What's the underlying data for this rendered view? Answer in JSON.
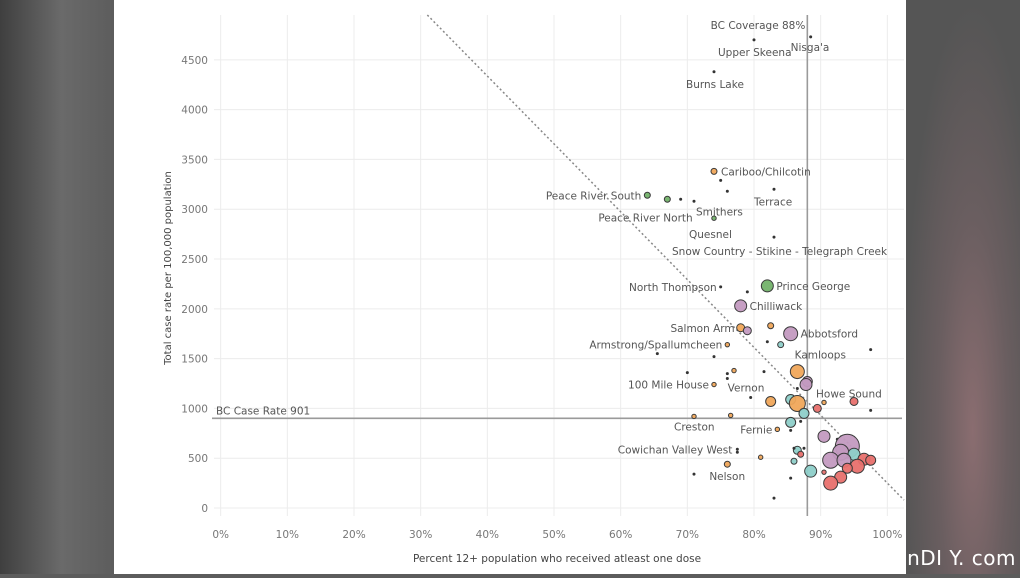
{
  "chart_data": {
    "type": "scatter",
    "xlabel": "Percent 12+ population who received atleast one dose",
    "ylabel": "Total case rate per 100,000 population",
    "xlim": [
      -0.01,
      1.025
    ],
    "ylim": [
      -80,
      4950
    ],
    "x_ticks": [
      0,
      0.1,
      0.2,
      0.3,
      0.4,
      0.5,
      0.6,
      0.7,
      0.8,
      0.9,
      1.0
    ],
    "x_tick_labels": [
      "0%",
      "10%",
      "20%",
      "30%",
      "40%",
      "50%",
      "60%",
      "70%",
      "80%",
      "90%",
      "100%"
    ],
    "y_ticks": [
      0,
      500,
      1000,
      1500,
      2000,
      2500,
      3000,
      3500,
      4000,
      4500
    ],
    "y_tick_labels": [
      "0",
      "500",
      "1000",
      "1500",
      "2000",
      "2500",
      "3000",
      "3500",
      "4000",
      "4500"
    ],
    "grid": true,
    "reference_lines": {
      "coverage": {
        "label": "BC Coverage 88%",
        "x": 0.88
      },
      "case_rate": {
        "label": "BC Case Rate 901",
        "y": 901
      }
    },
    "trend_line": {
      "from": [
        0.31,
        4950
      ],
      "to": [
        1.025,
        80
      ]
    },
    "colors": {
      "green": "#73b26a",
      "orange": "#f0a65a",
      "purple": "#c39ac0",
      "teal": "#8ecfc9",
      "red": "#e8706d",
      "dark": "#333333"
    },
    "points": [
      {
        "x": 0.8,
        "y": 4700,
        "size": 1,
        "color": "dark",
        "label": "Upper Skeena"
      },
      {
        "x": 0.885,
        "y": 4730,
        "size": 1,
        "color": "dark",
        "label": "Nisga'a"
      },
      {
        "x": 0.74,
        "y": 4380,
        "size": 1,
        "color": "dark",
        "label": "Burns Lake"
      },
      {
        "x": 0.74,
        "y": 3380,
        "size": 3,
        "color": "orange",
        "label": "Cariboo/Chilcotin"
      },
      {
        "x": 0.75,
        "y": 3290,
        "size": 1,
        "color": "dark"
      },
      {
        "x": 0.64,
        "y": 3140,
        "size": 3,
        "color": "green",
        "label": "Peace River South"
      },
      {
        "x": 0.67,
        "y": 3100,
        "size": 3,
        "color": "green",
        "label": "Peace River North"
      },
      {
        "x": 0.69,
        "y": 3100,
        "size": 1,
        "color": "dark"
      },
      {
        "x": 0.71,
        "y": 3080,
        "size": 2,
        "color": "dark",
        "label": "Smithers"
      },
      {
        "x": 0.76,
        "y": 3180,
        "size": 2,
        "color": "dark"
      },
      {
        "x": 0.83,
        "y": 3200,
        "size": 2,
        "color": "dark",
        "label": "Terrace"
      },
      {
        "x": 0.74,
        "y": 2910,
        "size": 2,
        "color": "green",
        "label": "Quesnel"
      },
      {
        "x": 0.83,
        "y": 2720,
        "size": 1,
        "color": "dark",
        "label": "Snow Country - Stikine - Telegraph Creek"
      },
      {
        "x": 0.82,
        "y": 2230,
        "size": 6,
        "color": "green",
        "label": "Prince George"
      },
      {
        "x": 0.75,
        "y": 2220,
        "size": 1,
        "color": "dark",
        "label": "North Thompson"
      },
      {
        "x": 0.79,
        "y": 2170,
        "size": 1,
        "color": "dark"
      },
      {
        "x": 0.78,
        "y": 2030,
        "size": 6,
        "color": "purple",
        "label": "Chilliwack"
      },
      {
        "x": 0.78,
        "y": 1810,
        "size": 4,
        "color": "orange",
        "label": "Salmon Arm"
      },
      {
        "x": 0.79,
        "y": 1780,
        "size": 4,
        "color": "purple"
      },
      {
        "x": 0.825,
        "y": 1830,
        "size": 3,
        "color": "orange"
      },
      {
        "x": 0.855,
        "y": 1750,
        "size": 7,
        "color": "purple",
        "label": "Abbotsford"
      },
      {
        "x": 0.82,
        "y": 1670,
        "size": 1,
        "color": "dark"
      },
      {
        "x": 0.84,
        "y": 1640,
        "size": 3,
        "color": "teal",
        "label": "Kamloops"
      },
      {
        "x": 0.76,
        "y": 1640,
        "size": 2,
        "color": "orange",
        "label": "Armstrong/Spallumcheen"
      },
      {
        "x": 0.655,
        "y": 1550,
        "size": 1,
        "color": "dark"
      },
      {
        "x": 0.74,
        "y": 1520,
        "size": 1,
        "color": "dark"
      },
      {
        "x": 0.975,
        "y": 1590,
        "size": 2,
        "color": "dark"
      },
      {
        "x": 0.77,
        "y": 1380,
        "size": 2,
        "color": "orange"
      },
      {
        "x": 0.7,
        "y": 1360,
        "size": 1,
        "color": "dark"
      },
      {
        "x": 0.76,
        "y": 1350,
        "size": 1,
        "color": "dark"
      },
      {
        "x": 0.76,
        "y": 1300,
        "size": 1,
        "color": "dark"
      },
      {
        "x": 0.815,
        "y": 1370,
        "size": 2,
        "color": "dark"
      },
      {
        "x": 0.865,
        "y": 1370,
        "size": 7,
        "color": "orange"
      },
      {
        "x": 0.88,
        "y": 1270,
        "size": 5,
        "color": "purple"
      },
      {
        "x": 0.878,
        "y": 1240,
        "size": 6,
        "color": "purple",
        "label": "Howe Sound"
      },
      {
        "x": 0.74,
        "y": 1240,
        "size": 2,
        "color": "orange",
        "label": "100 Mile House"
      },
      {
        "x": 0.795,
        "y": 1110,
        "size": 2,
        "color": "dark",
        "label": "Vernon"
      },
      {
        "x": 0.865,
        "y": 1200,
        "size": 3,
        "color": "dark"
      },
      {
        "x": 0.825,
        "y": 1070,
        "size": 5,
        "color": "orange"
      },
      {
        "x": 0.855,
        "y": 1090,
        "size": 5,
        "color": "teal"
      },
      {
        "x": 0.865,
        "y": 1050,
        "size": 8,
        "color": "orange"
      },
      {
        "x": 0.895,
        "y": 1000,
        "size": 4,
        "color": "red"
      },
      {
        "x": 0.905,
        "y": 1060,
        "size": 2,
        "color": "orange"
      },
      {
        "x": 0.95,
        "y": 1070,
        "size": 4,
        "color": "red"
      },
      {
        "x": 0.975,
        "y": 980,
        "size": 2,
        "color": "dark"
      },
      {
        "x": 0.875,
        "y": 950,
        "size": 5,
        "color": "teal"
      },
      {
        "x": 0.855,
        "y": 860,
        "size": 5,
        "color": "teal"
      },
      {
        "x": 0.87,
        "y": 870,
        "size": 3,
        "color": "dark"
      },
      {
        "x": 0.765,
        "y": 930,
        "size": 1,
        "color": "orange"
      },
      {
        "x": 0.71,
        "y": 920,
        "size": 2,
        "color": "orange",
        "label": "Creston"
      },
      {
        "x": 0.835,
        "y": 790,
        "size": 2,
        "color": "orange",
        "label": "Fernie"
      },
      {
        "x": 0.855,
        "y": 780,
        "size": 2,
        "color": "dark"
      },
      {
        "x": 0.905,
        "y": 720,
        "size": 6,
        "color": "purple"
      },
      {
        "x": 0.925,
        "y": 690,
        "size": 2,
        "color": "dark"
      },
      {
        "x": 0.94,
        "y": 620,
        "size": 12,
        "color": "purple"
      },
      {
        "x": 0.93,
        "y": 560,
        "size": 8,
        "color": "purple"
      },
      {
        "x": 0.95,
        "y": 540,
        "size": 6,
        "color": "teal"
      },
      {
        "x": 0.965,
        "y": 490,
        "size": 6,
        "color": "red"
      },
      {
        "x": 0.975,
        "y": 480,
        "size": 5,
        "color": "red"
      },
      {
        "x": 0.915,
        "y": 480,
        "size": 8,
        "color": "purple"
      },
      {
        "x": 0.935,
        "y": 480,
        "size": 7,
        "color": "purple"
      },
      {
        "x": 0.955,
        "y": 420,
        "size": 7,
        "color": "red"
      },
      {
        "x": 0.94,
        "y": 400,
        "size": 5,
        "color": "red"
      },
      {
        "x": 0.93,
        "y": 310,
        "size": 6,
        "color": "red"
      },
      {
        "x": 0.915,
        "y": 250,
        "size": 7,
        "color": "red"
      },
      {
        "x": 0.905,
        "y": 360,
        "size": 2,
        "color": "red"
      },
      {
        "x": 0.885,
        "y": 370,
        "size": 6,
        "color": "teal"
      },
      {
        "x": 0.865,
        "y": 580,
        "size": 4,
        "color": "teal"
      },
      {
        "x": 0.86,
        "y": 470,
        "size": 3,
        "color": "teal"
      },
      {
        "x": 0.86,
        "y": 600,
        "size": 2,
        "color": "dark"
      },
      {
        "x": 0.87,
        "y": 540,
        "size": 3,
        "color": "red"
      },
      {
        "x": 0.875,
        "y": 600,
        "size": 2,
        "color": "dark"
      },
      {
        "x": 0.775,
        "y": 590,
        "size": 1,
        "color": "dark",
        "label": "Cowichan Valley West"
      },
      {
        "x": 0.775,
        "y": 560,
        "size": 1,
        "color": "dark"
      },
      {
        "x": 0.81,
        "y": 510,
        "size": 2,
        "color": "orange"
      },
      {
        "x": 0.76,
        "y": 440,
        "size": 3,
        "color": "orange",
        "label": "Nelson"
      },
      {
        "x": 0.71,
        "y": 340,
        "size": 1,
        "color": "dark"
      },
      {
        "x": 0.855,
        "y": 300,
        "size": 1,
        "color": "dark"
      },
      {
        "x": 0.83,
        "y": 100,
        "size": 2,
        "color": "dark"
      }
    ]
  },
  "watermark": "nDI Y. com"
}
